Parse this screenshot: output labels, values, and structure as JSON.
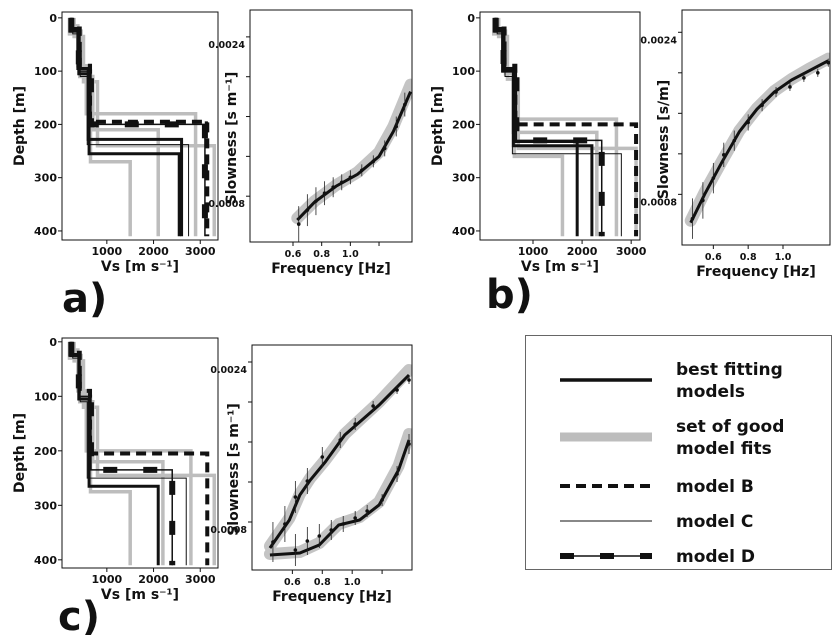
{
  "chart_data": [
    {
      "type": "line",
      "panel_label": "a)",
      "xlabel": "Vs [m s⁻¹]",
      "ylabel": "Depth [m]",
      "xlim": [
        40,
        3380
      ],
      "ylim": [
        -11,
        417
      ],
      "yinvert": true,
      "xticks": [
        1000,
        2000,
        3000
      ],
      "yticks": [
        0,
        100,
        200,
        300,
        400
      ],
      "series": [
        {
          "style": "good",
          "x": [
            200,
            200,
            420,
            420,
            700,
            700,
            2100,
            2100
          ],
          "values": [
            0,
            30,
            30,
            110,
            110,
            210,
            210,
            410
          ]
        },
        {
          "style": "good",
          "x": [
            260,
            260,
            380,
            380,
            560,
            560,
            2900,
            2900
          ],
          "values": [
            0,
            15,
            15,
            90,
            90,
            180,
            180,
            410
          ]
        },
        {
          "style": "good",
          "x": [
            300,
            300,
            500,
            500,
            800,
            800,
            3300,
            3300
          ],
          "values": [
            0,
            35,
            35,
            120,
            120,
            240,
            240,
            410
          ]
        },
        {
          "style": "good",
          "x": [
            220,
            220,
            450,
            450,
            650,
            650,
            1500,
            1500
          ],
          "values": [
            0,
            25,
            25,
            100,
            100,
            270,
            270,
            410
          ]
        },
        {
          "style": "best",
          "x": [
            230,
            230,
            400,
            400,
            620,
            620,
            2550,
            2550
          ],
          "values": [
            0,
            25,
            25,
            105,
            105,
            255,
            255,
            410
          ]
        },
        {
          "style": "best",
          "x": [
            250,
            250,
            380,
            380,
            600,
            600,
            2600,
            2600
          ],
          "values": [
            0,
            20,
            20,
            95,
            95,
            228,
            228,
            410
          ]
        },
        {
          "style": "B",
          "x": [
            250,
            250,
            420,
            420,
            640,
            640,
            3150,
            3150
          ],
          "values": [
            0,
            20,
            20,
            90,
            90,
            195,
            195,
            410
          ]
        },
        {
          "style": "C",
          "x": [
            270,
            270,
            430,
            430,
            580,
            580,
            2750,
            2750
          ],
          "values": [
            0,
            30,
            30,
            110,
            110,
            238,
            238,
            410
          ]
        },
        {
          "style": "D",
          "x": [
            240,
            240,
            400,
            400,
            660,
            660,
            3100,
            3100
          ],
          "values": [
            0,
            22,
            22,
            100,
            100,
            200,
            200,
            410
          ]
        }
      ]
    },
    {
      "type": "line",
      "xlabel": "Frequency [Hz]",
      "ylabel": "Slowness [s m⁻¹]",
      "xlim": [
        0.3,
        1.43
      ],
      "ylim": [
        0.00034,
        0.00267
      ],
      "xticks": [
        0.6,
        0.8,
        {
          "value": 1,
          "label": "1.0"
        }
      ],
      "xminorticks": [
        1.2
      ],
      "yticks": [
        0.0008,
        0.0024
      ],
      "yminorticks": [
        0.0012,
        0.0016,
        0.002
      ],
      "series": [
        {
          "style": "band",
          "x": [
            0.63,
            0.75,
            0.9,
            1.05,
            1.2,
            1.3,
            1.42
          ],
          "values": [
            0.00058,
            0.00075,
            0.00091,
            0.00104,
            0.00124,
            0.0015,
            0.00192
          ]
        },
        {
          "style": "best",
          "x": [
            0.63,
            0.75,
            0.9,
            1.05,
            1.2,
            1.3,
            1.42
          ],
          "values": [
            0.00056,
            0.00074,
            0.0009,
            0.00102,
            0.0012,
            0.00145,
            0.00185
          ]
        },
        {
          "style": "observed",
          "x": [
            0.64,
            0.7,
            0.76,
            0.82,
            0.88,
            0.94,
            1.0,
            1.08,
            1.16,
            1.24,
            1.32,
            1.38
          ],
          "values": [
            0.00052,
            0.00066,
            0.00075,
            0.00083,
            0.00089,
            0.00094,
            0.00099,
            0.00106,
            0.00115,
            0.00128,
            0.0015,
            0.00172
          ],
          "errors": [
            0.00018,
            0.00016,
            0.00014,
            0.00012,
            0.0001,
            8e-05,
            7e-05,
            6e-05,
            6e-05,
            8e-05,
            0.0001,
            0.00012
          ]
        }
      ]
    },
    {
      "type": "line",
      "panel_label": "b)",
      "xlabel": "Vs [m s⁻¹]",
      "ylabel": "Depth [m]",
      "xlim": [
        -80,
        3180
      ],
      "ylim": [
        -11,
        417
      ],
      "yinvert": true,
      "xticks": [
        1000,
        2000,
        3000
      ],
      "yticks": [
        0,
        100,
        200,
        300,
        400
      ],
      "series": [
        {
          "style": "good",
          "x": [
            200,
            200,
            400,
            400,
            600,
            600,
            2300,
            2300
          ],
          "values": [
            0,
            30,
            30,
            100,
            100,
            215,
            215,
            410
          ]
        },
        {
          "style": "good",
          "x": [
            250,
            250,
            420,
            420,
            640,
            640,
            2700,
            2700
          ],
          "values": [
            0,
            20,
            20,
            95,
            95,
            190,
            190,
            410
          ]
        },
        {
          "style": "good",
          "x": [
            300,
            300,
            480,
            480,
            700,
            700,
            3100,
            3100
          ],
          "values": [
            0,
            35,
            35,
            115,
            115,
            245,
            245,
            410
          ]
        },
        {
          "style": "good",
          "x": [
            220,
            220,
            440,
            440,
            620,
            620,
            1600,
            1600
          ],
          "values": [
            0,
            25,
            25,
            105,
            105,
            260,
            260,
            410
          ]
        },
        {
          "style": "best",
          "x": [
            230,
            230,
            380,
            380,
            600,
            600,
            2200,
            2200
          ],
          "values": [
            0,
            25,
            25,
            100,
            100,
            240,
            240,
            410
          ]
        },
        {
          "style": "best",
          "x": [
            250,
            250,
            400,
            400,
            620,
            620,
            1900,
            1900
          ],
          "values": [
            0,
            20,
            20,
            95,
            95,
            232,
            232,
            410
          ]
        },
        {
          "style": "B",
          "x": [
            250,
            250,
            420,
            420,
            640,
            640,
            3100,
            3100
          ],
          "values": [
            0,
            20,
            20,
            90,
            90,
            200,
            200,
            410
          ]
        },
        {
          "style": "C",
          "x": [
            270,
            270,
            430,
            430,
            580,
            580,
            2800,
            2800
          ],
          "values": [
            0,
            30,
            30,
            110,
            110,
            255,
            255,
            410
          ]
        },
        {
          "style": "D",
          "x": [
            240,
            240,
            400,
            400,
            660,
            660,
            2400,
            2400
          ],
          "values": [
            0,
            22,
            22,
            100,
            100,
            230,
            230,
            410
          ]
        }
      ]
    },
    {
      "type": "line",
      "xlabel": "Frequency [Hz]",
      "ylabel": "Slowness [s/m]",
      "xlim": [
        0.42,
        1.27
      ],
      "ylim": [
        0.0003,
        0.00262
      ],
      "xticks": [
        0.6,
        0.8,
        {
          "value": 1,
          "label": "1.0"
        }
      ],
      "yticks": [
        0.0008,
        0.0024
      ],
      "yminorticks": [
        0.0012,
        0.0016,
        0.002
      ],
      "series": [
        {
          "style": "band",
          "x": [
            0.47,
            0.55,
            0.65,
            0.75,
            0.85,
            0.95,
            1.05,
            1.15,
            1.26
          ],
          "values": [
            0.00054,
            0.00082,
            0.00113,
            0.00143,
            0.00165,
            0.00182,
            0.00194,
            0.00204,
            0.00214
          ]
        },
        {
          "style": "best",
          "x": [
            0.47,
            0.55,
            0.65,
            0.75,
            0.85,
            0.95,
            1.05,
            1.15,
            1.26
          ],
          "values": [
            0.00052,
            0.0008,
            0.00112,
            0.00142,
            0.00164,
            0.00181,
            0.00193,
            0.00202,
            0.00212
          ]
        },
        {
          "style": "observed",
          "x": [
            0.48,
            0.54,
            0.6,
            0.66,
            0.72,
            0.8,
            0.88,
            0.96,
            1.04,
            1.12,
            1.2,
            1.26
          ],
          "values": [
            0.00056,
            0.00074,
            0.00096,
            0.00119,
            0.00133,
            0.00151,
            0.00168,
            0.00181,
            0.00186,
            0.00195,
            0.002,
            0.0021
          ],
          "errors": [
            0.0002,
            0.00018,
            0.00015,
            0.00012,
            0.0001,
            8e-05,
            6e-05,
            5e-05,
            4e-05,
            4e-05,
            4e-05,
            4e-05
          ]
        }
      ]
    },
    {
      "type": "line",
      "panel_label": "c)",
      "xlabel": "Vs [m s⁻¹]",
      "ylabel": "Depth [m]",
      "xlim": [
        40,
        3380
      ],
      "ylim": [
        -7,
        415
      ],
      "yinvert": true,
      "xticks": [
        1000,
        2000,
        3000
      ],
      "yticks": [
        0,
        100,
        200,
        300,
        400
      ],
      "series": [
        {
          "style": "good",
          "x": [
            200,
            200,
            420,
            420,
            700,
            700,
            2200,
            2200
          ],
          "values": [
            0,
            30,
            30,
            110,
            110,
            220,
            220,
            410
          ]
        },
        {
          "style": "good",
          "x": [
            260,
            260,
            380,
            380,
            560,
            560,
            2800,
            2800
          ],
          "values": [
            0,
            15,
            15,
            90,
            90,
            200,
            200,
            410
          ]
        },
        {
          "style": "good",
          "x": [
            300,
            300,
            500,
            500,
            800,
            800,
            3300,
            3300
          ],
          "values": [
            0,
            35,
            35,
            120,
            120,
            245,
            245,
            410
          ]
        },
        {
          "style": "good",
          "x": [
            220,
            220,
            450,
            450,
            650,
            650,
            1500,
            1500
          ],
          "values": [
            0,
            25,
            25,
            100,
            100,
            275,
            275,
            410
          ]
        },
        {
          "style": "best",
          "x": [
            230,
            230,
            400,
            400,
            620,
            620,
            2100,
            2100
          ],
          "values": [
            0,
            25,
            25,
            105,
            105,
            265,
            265,
            410
          ]
        },
        {
          "style": "B",
          "x": [
            250,
            250,
            420,
            420,
            640,
            640,
            3150,
            3150
          ],
          "values": [
            0,
            20,
            20,
            90,
            90,
            205,
            205,
            410
          ]
        },
        {
          "style": "C",
          "x": [
            270,
            270,
            430,
            430,
            580,
            580,
            2700,
            2700
          ],
          "values": [
            0,
            30,
            30,
            110,
            110,
            250,
            250,
            410
          ]
        },
        {
          "style": "D",
          "x": [
            240,
            240,
            400,
            400,
            660,
            660,
            2400,
            2400
          ],
          "values": [
            0,
            22,
            22,
            100,
            100,
            235,
            235,
            410
          ]
        }
      ]
    },
    {
      "type": "line",
      "xlabel": "Frequency [Hz]",
      "ylabel": "Slowness [s m⁻¹]",
      "xlim": [
        0.33,
        1.4
      ],
      "ylim": [
        0.00032,
        0.00257
      ],
      "xticks": [
        0.6,
        0.8,
        {
          "value": 1,
          "label": "1.0"
        }
      ],
      "xminorticks": [
        1.2
      ],
      "yticks": [
        0.0008,
        0.0024
      ],
      "yminorticks": [
        0.0012,
        0.0016,
        0.002
      ],
      "series": [
        {
          "style": "band",
          "x": [
            0.45,
            0.58,
            0.65,
            0.72,
            0.82,
            0.95,
            1.05,
            1.18,
            1.38
          ],
          "values": [
            0.00056,
            0.00084,
            0.00108,
            0.00124,
            0.00142,
            0.00168,
            0.00182,
            0.002,
            0.00232
          ]
        },
        {
          "style": "band",
          "x": [
            0.45,
            0.65,
            0.78,
            0.91,
            1.05,
            1.18,
            1.31,
            1.38
          ],
          "values": [
            0.00048,
            0.0005,
            0.00059,
            0.00078,
            0.00085,
            0.001,
            0.00136,
            0.00168
          ]
        },
        {
          "style": "best",
          "x": [
            0.45,
            0.58,
            0.65,
            0.72,
            0.82,
            0.95,
            1.05,
            1.18,
            1.38
          ],
          "values": [
            0.00054,
            0.00082,
            0.00107,
            0.00122,
            0.0014,
            0.00167,
            0.0018,
            0.00197,
            0.00227
          ]
        },
        {
          "style": "best",
          "x": [
            0.45,
            0.65,
            0.78,
            0.91,
            1.05,
            1.18,
            1.31,
            1.38
          ],
          "values": [
            0.00047,
            0.00049,
            0.00057,
            0.00077,
            0.00082,
            0.00097,
            0.00132,
            0.00162
          ]
        },
        {
          "style": "observed",
          "x": [
            0.47,
            0.55,
            0.62,
            0.7,
            0.8,
            0.92,
            1.02,
            1.14,
            1.3,
            1.38
          ],
          "values": [
            0.0006,
            0.00078,
            0.00105,
            0.00121,
            0.00145,
            0.00162,
            0.00178,
            0.00196,
            0.00212,
            0.00222
          ],
          "errors": [
            0.0002,
            0.00018,
            0.00016,
            0.00013,
            0.0001,
            8e-05,
            6e-05,
            5e-05,
            4e-05,
            4e-05
          ]
        },
        {
          "style": "observed",
          "x": [
            0.62,
            0.7,
            0.78,
            0.86,
            0.94,
            1.02,
            1.1,
            1.2,
            1.3,
            1.38
          ],
          "values": [
            0.00052,
            0.00061,
            0.00066,
            0.00072,
            0.00078,
            0.00084,
            0.00091,
            0.00102,
            0.00128,
            0.00158
          ],
          "errors": [
            0.00016,
            0.00014,
            0.00012,
            0.0001,
            8e-05,
            7e-05,
            6e-05,
            6e-05,
            8e-05,
            0.0001
          ]
        }
      ]
    }
  ],
  "legend": {
    "items": [
      {
        "style": "best",
        "label": [
          "best fitting",
          "models"
        ]
      },
      {
        "style": "good",
        "label": [
          "set of good",
          "model fits"
        ]
      },
      {
        "style": "B",
        "label": [
          "model B"
        ]
      },
      {
        "style": "C",
        "label": [
          "model C"
        ]
      },
      {
        "style": "D",
        "label": [
          "model D"
        ]
      }
    ]
  }
}
